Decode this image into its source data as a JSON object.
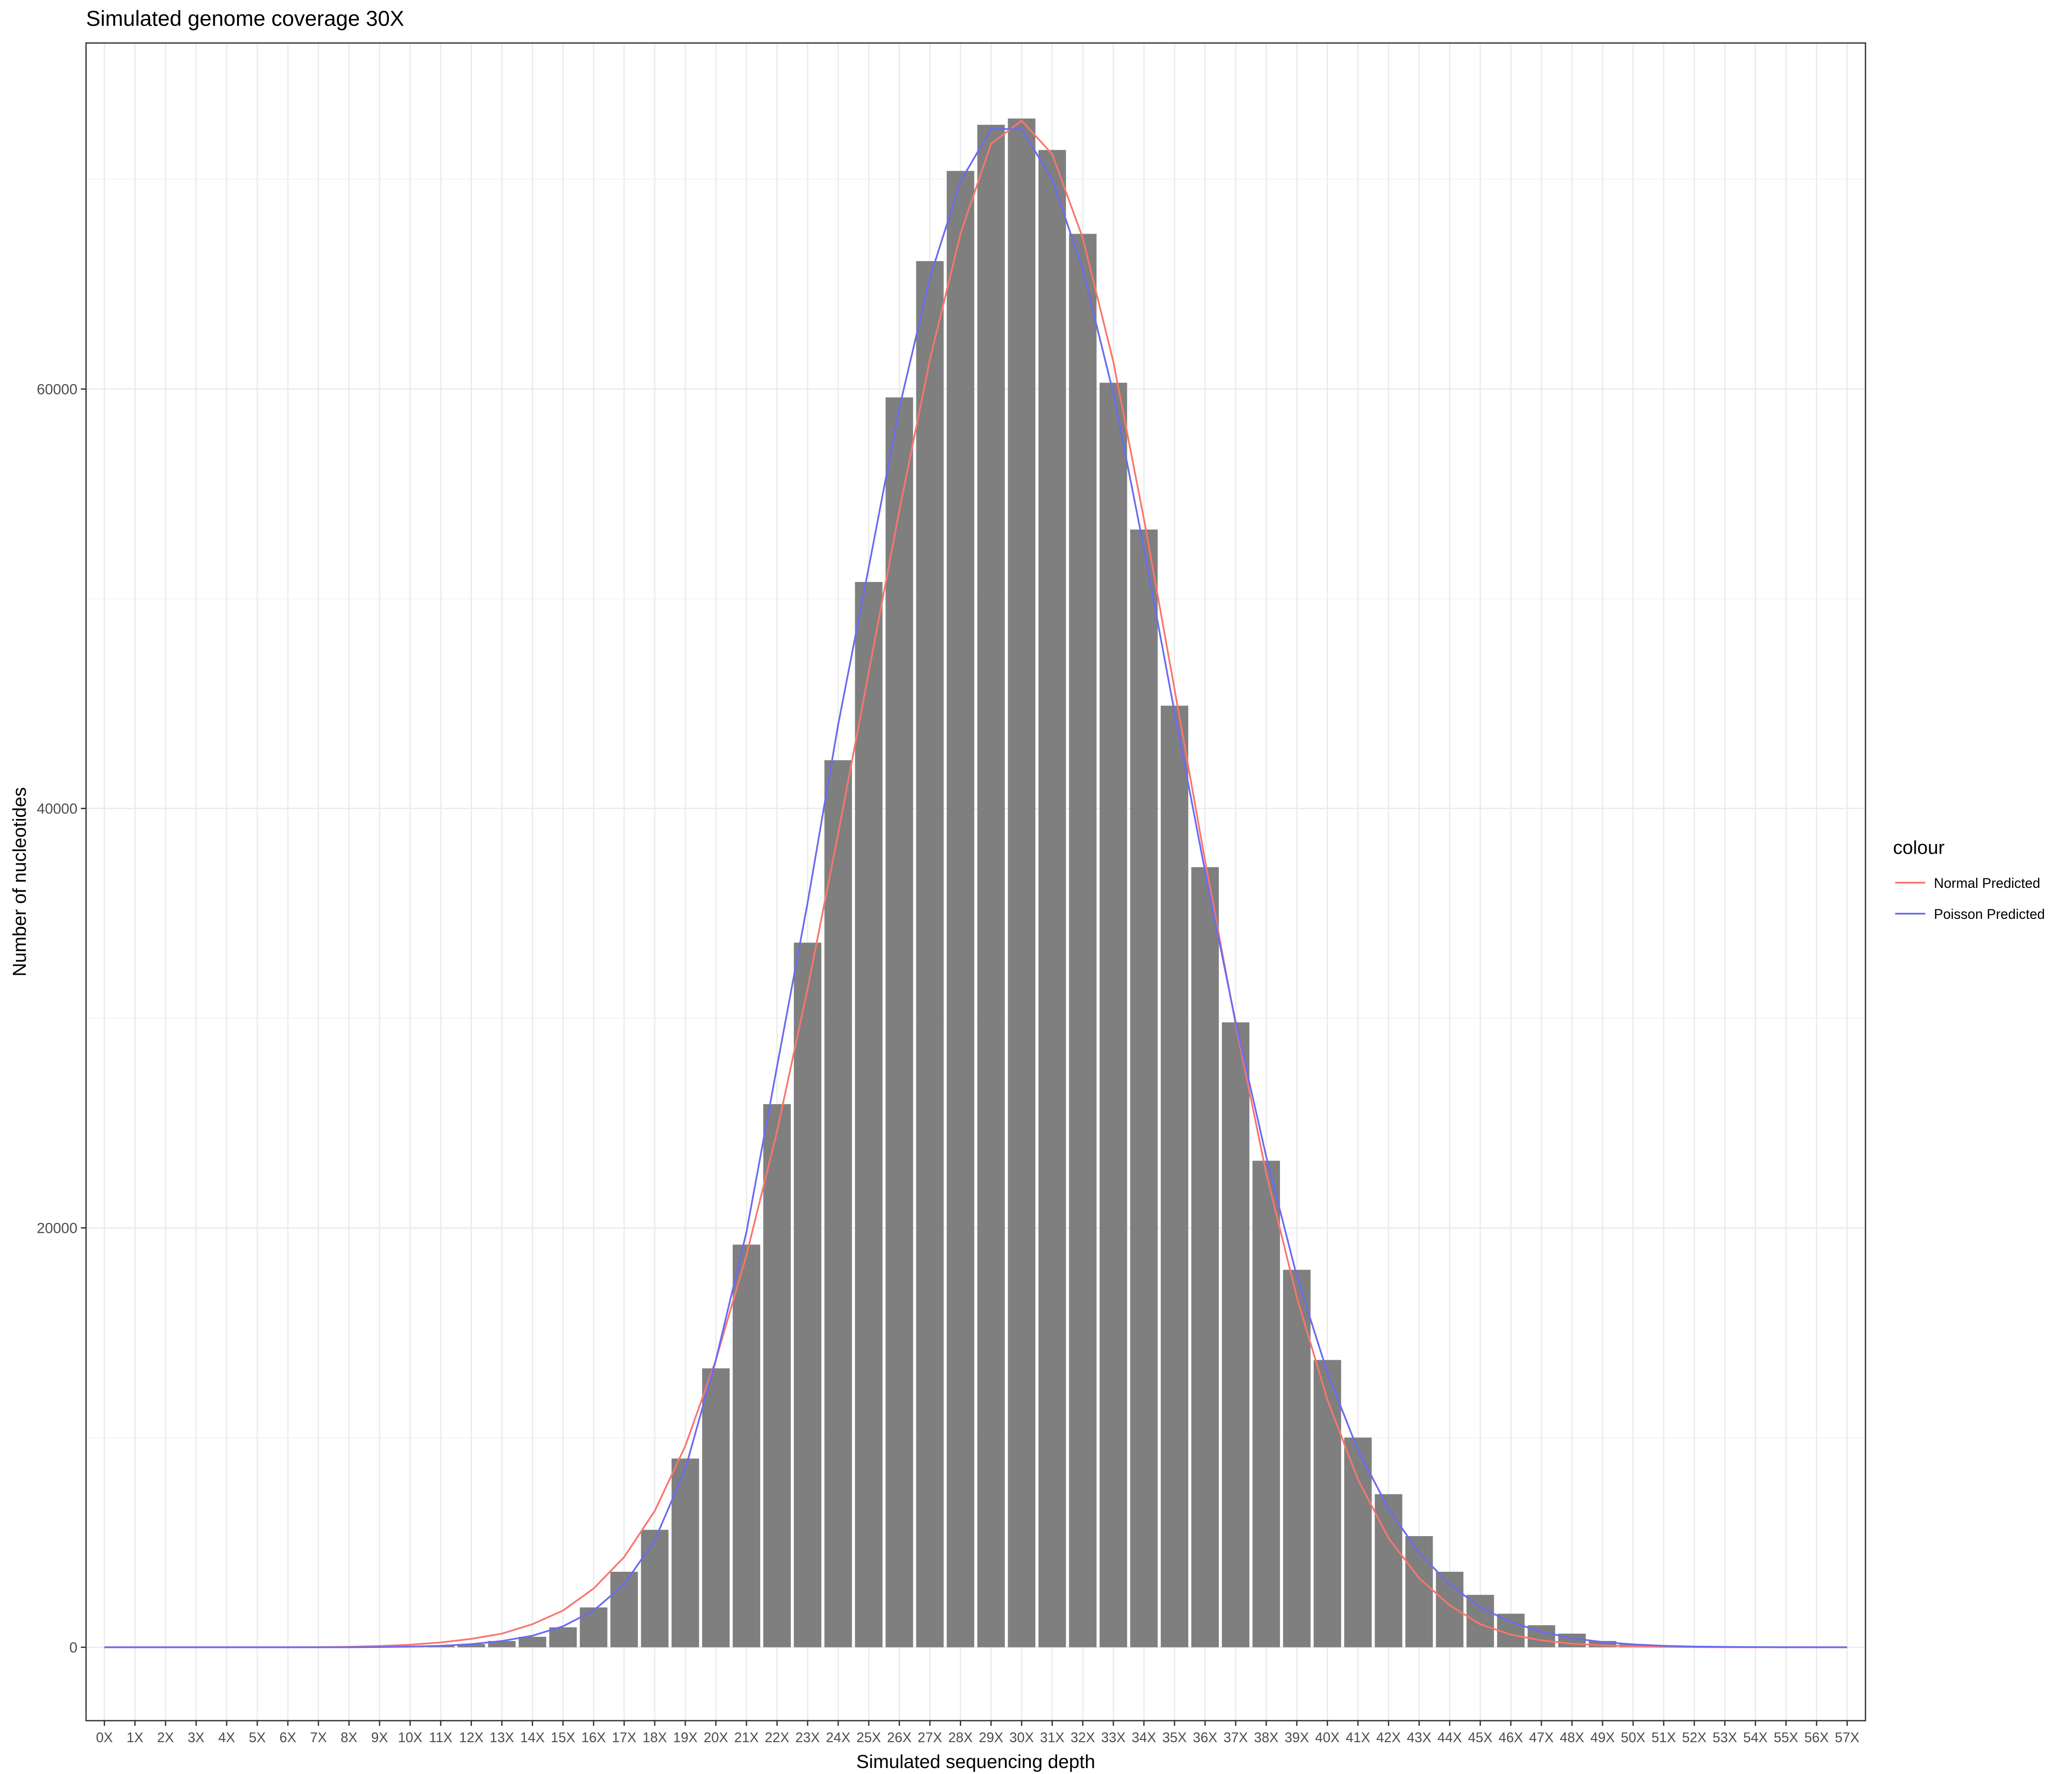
{
  "chart_data": {
    "type": "bar",
    "title": "Simulated genome coverage 30X",
    "xlabel": "Simulated sequencing depth",
    "ylabel": "Number of nucleotides",
    "categories": [
      "0X",
      "1X",
      "2X",
      "3X",
      "4X",
      "5X",
      "6X",
      "7X",
      "8X",
      "9X",
      "10X",
      "11X",
      "12X",
      "13X",
      "14X",
      "15X",
      "16X",
      "17X",
      "18X",
      "19X",
      "20X",
      "21X",
      "22X",
      "23X",
      "24X",
      "25X",
      "26X",
      "27X",
      "28X",
      "29X",
      "30X",
      "31X",
      "32X",
      "33X",
      "34X",
      "35X",
      "36X",
      "37X",
      "38X",
      "39X",
      "40X",
      "41X",
      "42X",
      "43X",
      "44X",
      "45X",
      "46X",
      "47X",
      "48X",
      "49X",
      "50X",
      "51X",
      "52X",
      "53X",
      "54X",
      "55X",
      "56X",
      "57X"
    ],
    "values": [
      0,
      0,
      0,
      0,
      0,
      0,
      0,
      0,
      0,
      0,
      15,
      60,
      150,
      300,
      500,
      950,
      1900,
      3600,
      5600,
      9000,
      13300,
      19200,
      25900,
      33600,
      42300,
      50800,
      59600,
      66100,
      70400,
      72600,
      72900,
      71400,
      67400,
      60300,
      53300,
      44900,
      37200,
      29800,
      23200,
      18000,
      13700,
      10000,
      7300,
      5300,
      3600,
      2500,
      1600,
      1050,
      650,
      300,
      150,
      60,
      25,
      10,
      0,
      0,
      0,
      0
    ],
    "series": [
      {
        "name": "Normal Predicted",
        "color": "#f8766d",
        "values": [
          0,
          0,
          0,
          0,
          0,
          0,
          0,
          5,
          20,
          60,
          120,
          230,
          400,
          650,
          1100,
          1750,
          2800,
          4300,
          6500,
          9600,
          13700,
          18700,
          24600,
          31400,
          38800,
          46500,
          54200,
          61400,
          67400,
          71700,
          72800,
          71200,
          67200,
          61300,
          53800,
          45700,
          37500,
          29700,
          22600,
          16700,
          11800,
          8000,
          5200,
          3300,
          2000,
          1100,
          600,
          330,
          170,
          90,
          40,
          20,
          8,
          3,
          0,
          0,
          0,
          0
        ]
      },
      {
        "name": "Poisson Predicted",
        "color": "#6b6bf0",
        "values": [
          0,
          0,
          0,
          0,
          0,
          0,
          0,
          0,
          0,
          10,
          30,
          70,
          150,
          300,
          550,
          1000,
          1750,
          3000,
          5100,
          8500,
          13700,
          19800,
          27700,
          35500,
          44000,
          51500,
          59100,
          65300,
          69900,
          72400,
          72400,
          70000,
          65700,
          59800,
          52400,
          44600,
          37000,
          29800,
          23400,
          17700,
          13100,
          9400,
          6600,
          4500,
          3000,
          1900,
          1200,
          740,
          430,
          250,
          140,
          70,
          35,
          17,
          8,
          4,
          0,
          0
        ]
      }
    ],
    "ylim": [
      -3500,
      76500
    ],
    "yticks": [
      0,
      20000,
      40000,
      60000
    ],
    "legend": {
      "title": "colour",
      "position": "right",
      "entries": [
        "Normal Predicted",
        "Poisson Predicted"
      ]
    },
    "grid": true,
    "bar_color": "#7f7f7f"
  }
}
